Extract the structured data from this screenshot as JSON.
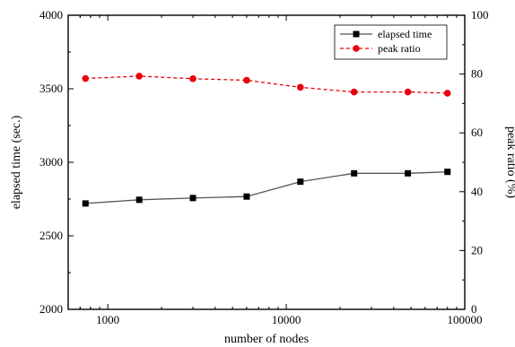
{
  "chart_data": {
    "type": "line",
    "xlabel": "number of nodes",
    "ylabel_left": "elapsed time (sec.)",
    "ylabel_right": "peak ratio (%)",
    "xscale": "log",
    "xlim": [
      600,
      100000
    ],
    "ylim_left": [
      2000,
      4000
    ],
    "ylim_right": [
      0,
      100
    ],
    "xticks": [
      1000,
      10000,
      100000
    ],
    "xtick_labels": [
      "1000",
      "10000",
      "100000"
    ],
    "yticks_left": [
      2000,
      2500,
      3000,
      3500,
      4000
    ],
    "yticks_left_labels": [
      "2000",
      "2500",
      "3000",
      "3500",
      "4000"
    ],
    "yticks_right": [
      0,
      20,
      40,
      60,
      80,
      100
    ],
    "yticks_right_labels": [
      "0",
      "20",
      "40",
      "60",
      "80",
      "100"
    ],
    "legend_position": "top-right",
    "series": [
      {
        "name": "elapsed time",
        "axis": "left",
        "color": "#555555",
        "marker_color": "#000000",
        "marker": "square",
        "line_style": "solid",
        "x": [
          750,
          1500,
          3000,
          6000,
          12000,
          24000,
          48000,
          80000
        ],
        "y": [
          2720,
          2745,
          2757,
          2767,
          2868,
          2925,
          2925,
          2935
        ]
      },
      {
        "name": "peak ratio",
        "axis": "right",
        "color": "#e8000b",
        "marker_color": "#e8000b",
        "marker": "circle",
        "line_style": "dashed",
        "x": [
          750,
          1500,
          3000,
          6000,
          12000,
          24000,
          48000,
          80000
        ],
        "y": [
          78.5,
          79.3,
          78.4,
          77.9,
          75.5,
          73.9,
          73.9,
          73.5
        ]
      }
    ]
  }
}
